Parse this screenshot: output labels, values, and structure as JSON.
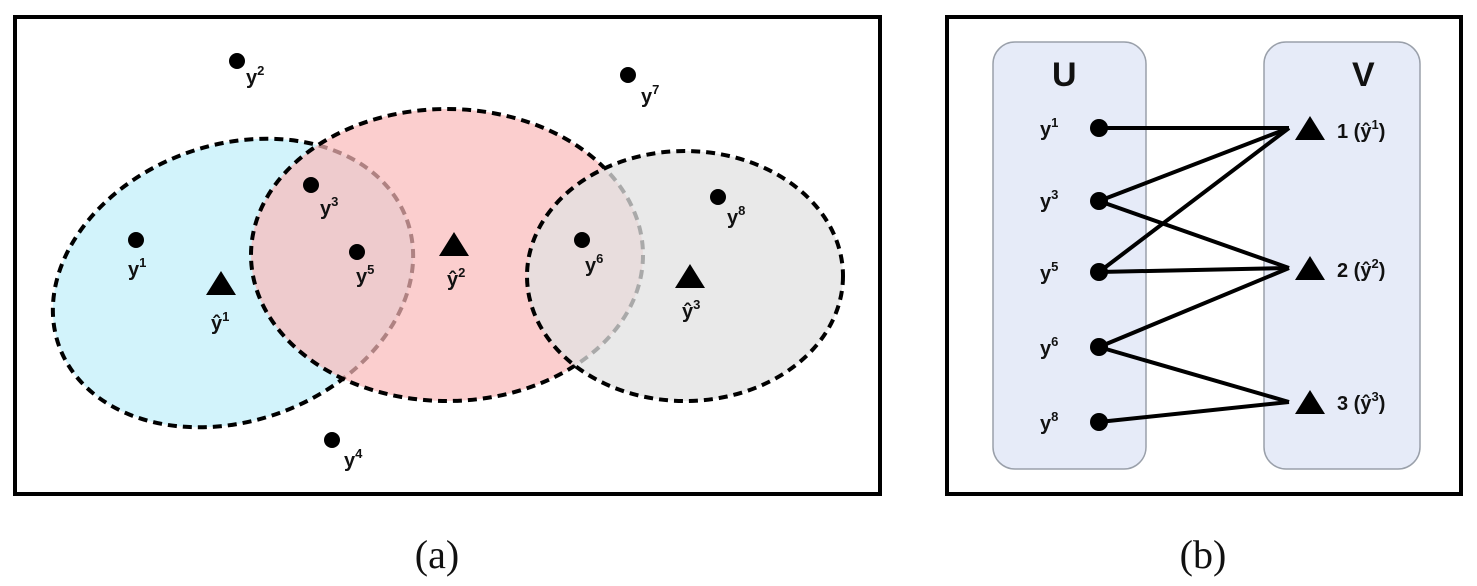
{
  "panel_a": {
    "caption": "(a)",
    "clusters": [
      {
        "id": "c1",
        "center_label": "ŷ",
        "center_sup": "1",
        "color": "#bfeefa"
      },
      {
        "id": "c2",
        "center_label": "ŷ",
        "center_sup": "2",
        "color": "#f9b9b9"
      },
      {
        "id": "c3",
        "center_label": "ŷ",
        "center_sup": "3",
        "color": "#e2e2e2"
      }
    ],
    "points": [
      {
        "id": "p1",
        "label": "y",
        "sup": "1"
      },
      {
        "id": "p2",
        "label": "y",
        "sup": "2"
      },
      {
        "id": "p3",
        "label": "y",
        "sup": "3"
      },
      {
        "id": "p4",
        "label": "y",
        "sup": "4"
      },
      {
        "id": "p5",
        "label": "y",
        "sup": "5"
      },
      {
        "id": "p6",
        "label": "y",
        "sup": "6"
      },
      {
        "id": "p7",
        "label": "y",
        "sup": "7"
      },
      {
        "id": "p8",
        "label": "y",
        "sup": "8"
      }
    ]
  },
  "panel_b": {
    "caption": "(b)",
    "left_set_label": "U",
    "right_set_label": "V",
    "set_color": "#e6ebf8",
    "left_nodes": [
      {
        "id": "u1",
        "label": "y",
        "sup": "1"
      },
      {
        "id": "u3",
        "label": "y",
        "sup": "3"
      },
      {
        "id": "u5",
        "label": "y",
        "sup": "5"
      },
      {
        "id": "u6",
        "label": "y",
        "sup": "6"
      },
      {
        "id": "u8",
        "label": "y",
        "sup": "8"
      }
    ],
    "right_nodes": [
      {
        "id": "v1",
        "label": "1 (ŷ",
        "sup": "1",
        "close": ")"
      },
      {
        "id": "v2",
        "label": "2 (ŷ",
        "sup": "2",
        "close": ")"
      },
      {
        "id": "v3",
        "label": "3 (ŷ",
        "sup": "3",
        "close": ")"
      }
    ],
    "edges": [
      [
        "u1",
        "v1"
      ],
      [
        "u3",
        "v1"
      ],
      [
        "u5",
        "v1"
      ],
      [
        "u3",
        "v2"
      ],
      [
        "u5",
        "v2"
      ],
      [
        "u6",
        "v2"
      ],
      [
        "u6",
        "v3"
      ],
      [
        "u8",
        "v3"
      ]
    ]
  }
}
